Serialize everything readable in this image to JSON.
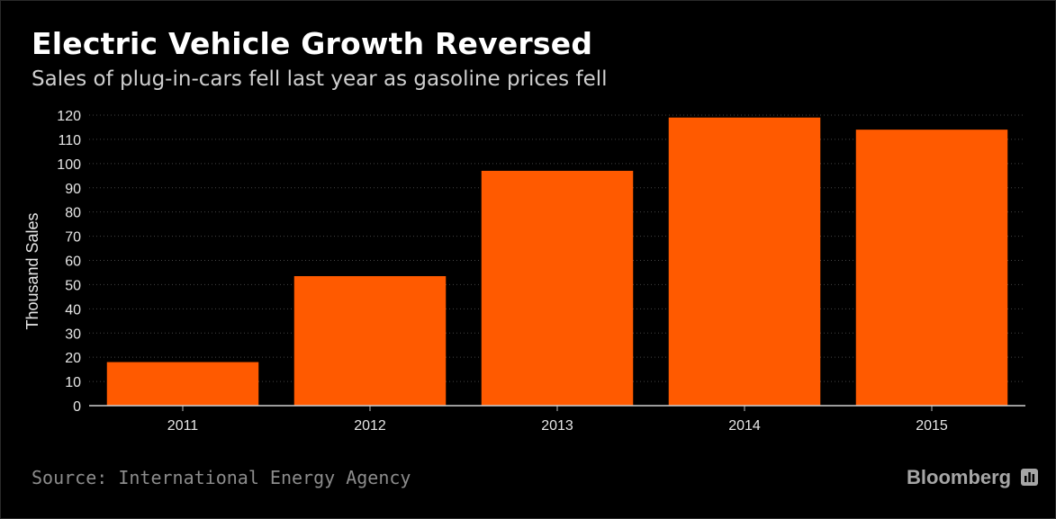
{
  "chart_data": {
    "type": "bar",
    "title": "Electric Vehicle Growth Reversed",
    "subtitle": "Sales of plug-in-cars fell last year as gasoline prices fell",
    "xlabel": "",
    "ylabel": "Thousand Sales",
    "categories": [
      "2011",
      "2012",
      "2013",
      "2014",
      "2015"
    ],
    "values": [
      18,
      53.5,
      97,
      119,
      114
    ],
    "ylim": [
      0,
      120
    ],
    "yticks": [
      0,
      10,
      20,
      30,
      40,
      50,
      60,
      70,
      80,
      90,
      100,
      110,
      120
    ],
    "grid": true,
    "legend": "none",
    "bar_color": "#ff5a00",
    "grid_color": "#444444",
    "background": "#000000"
  },
  "footer": {
    "source": "Source: International Energy Agency",
    "brand": "Bloomberg",
    "brand_icon": "bloomberg-bar-chart-icon"
  }
}
